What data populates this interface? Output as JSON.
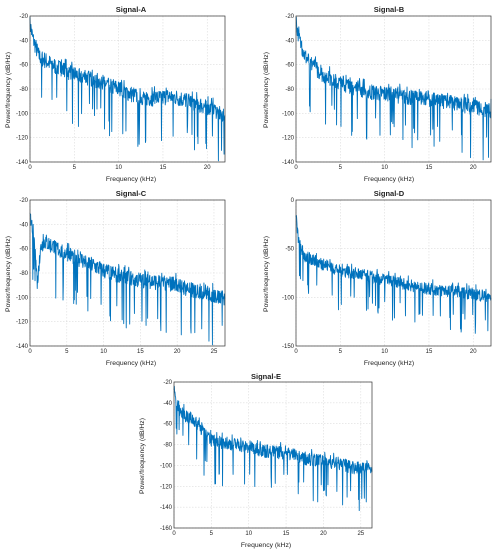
{
  "colors": {
    "trace": "#0072BD",
    "grid": "#dcdcdc",
    "axis": "#333333",
    "background": "#ffffff"
  },
  "chart_data": [
    {
      "type": "line",
      "title": "Signal-A",
      "xlabel": "Frequency (kHz)",
      "ylabel": "Power/frequency (dB/Hz)",
      "xlim": [
        0,
        22
      ],
      "ylim": [
        -140,
        -20
      ],
      "xticks": [
        0,
        5,
        10,
        15,
        20
      ],
      "yticks": [
        -140,
        -120,
        -100,
        -80,
        -60,
        -40,
        -20
      ],
      "grid": true,
      "series": [
        {
          "x": [
            0,
            0.3,
            1,
            2,
            3,
            5,
            8,
            10,
            12,
            14,
            16,
            18,
            20,
            22
          ],
          "values": [
            -28,
            -40,
            -55,
            -60,
            -64,
            -70,
            -76,
            -82,
            -88,
            -90,
            -88,
            -92,
            -97,
            -104
          ]
        }
      ]
    },
    {
      "type": "line",
      "title": "Signal-B",
      "xlabel": "Frequency (kHz)",
      "ylabel": "Power/frequency (dB/Hz)",
      "xlim": [
        0,
        22
      ],
      "ylim": [
        -140,
        -20
      ],
      "xticks": [
        0,
        5,
        10,
        15,
        20
      ],
      "yticks": [
        -140,
        -120,
        -100,
        -80,
        -60,
        -40,
        -20
      ],
      "grid": true,
      "series": [
        {
          "x": [
            0,
            0.3,
            1,
            2,
            3,
            5,
            8,
            10,
            12,
            15,
            18,
            20,
            22
          ],
          "values": [
            -25,
            -40,
            -55,
            -64,
            -70,
            -78,
            -84,
            -86,
            -88,
            -90,
            -94,
            -97,
            -100
          ]
        }
      ]
    },
    {
      "type": "line",
      "title": "Signal-C",
      "xlabel": "Frequency (kHz)",
      "ylabel": "Power/frequency (dB/Hz)",
      "xlim": [
        0,
        26.5
      ],
      "ylim": [
        -140,
        -20
      ],
      "xticks": [
        0,
        5,
        10,
        15,
        20,
        25
      ],
      "yticks": [
        -140,
        -120,
        -100,
        -80,
        -60,
        -40,
        -20
      ],
      "grid": true,
      "series": [
        {
          "x": [
            0,
            0.5,
            1,
            1.5,
            2,
            3,
            5,
            8,
            10,
            12,
            15,
            18,
            20,
            22,
            24,
            26.5
          ],
          "values": [
            -38,
            -48,
            -90,
            -60,
            -56,
            -60,
            -66,
            -74,
            -80,
            -84,
            -88,
            -90,
            -92,
            -96,
            -98,
            -104
          ]
        }
      ]
    },
    {
      "type": "line",
      "title": "Signal-D",
      "xlabel": "Frequency (kHz)",
      "ylabel": "Power/frequency (dB/Hz)",
      "xlim": [
        0,
        22
      ],
      "ylim": [
        -150,
        0
      ],
      "xticks": [
        0,
        5,
        10,
        15,
        20
      ],
      "yticks": [
        -150,
        -100,
        -50,
        0
      ],
      "grid": true,
      "series": [
        {
          "x": [
            0,
            0.3,
            1,
            2,
            3,
            5,
            8,
            10,
            12,
            14,
            16,
            18,
            20,
            22
          ],
          "values": [
            -20,
            -45,
            -60,
            -64,
            -68,
            -74,
            -80,
            -84,
            -88,
            -92,
            -94,
            -96,
            -98,
            -102
          ]
        }
      ]
    },
    {
      "type": "line",
      "title": "Signal-E",
      "xlabel": "Frequency (kHz)",
      "ylabel": "Power/frequency (dB/Hz)",
      "xlim": [
        0,
        26.5
      ],
      "ylim": [
        -160,
        -20
      ],
      "xticks": [
        0,
        5,
        10,
        15,
        20,
        25
      ],
      "yticks": [
        -160,
        -140,
        -120,
        -100,
        -80,
        -60,
        -40,
        -20
      ],
      "grid": true,
      "series": [
        {
          "x": [
            0,
            0.3,
            1,
            2,
            3,
            4,
            5,
            8,
            10,
            12,
            15,
            18,
            20,
            22,
            24,
            26.5
          ],
          "values": [
            -30,
            -40,
            -52,
            -56,
            -60,
            -70,
            -78,
            -82,
            -84,
            -88,
            -90,
            -96,
            -98,
            -100,
            -104,
            -106
          ]
        }
      ]
    }
  ]
}
